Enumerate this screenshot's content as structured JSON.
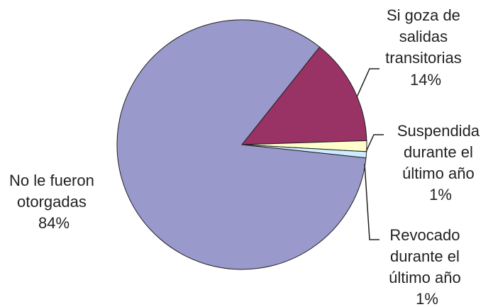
{
  "chart_data": {
    "type": "pie",
    "title": "",
    "slices": [
      {
        "label": [
          "Si goza de",
          "salidas",
          "transitorias"
        ],
        "percent_label": "14%",
        "value": 13.8,
        "color": "#993366"
      },
      {
        "label": [
          "Suspendida",
          "durante el",
          "último año"
        ],
        "percent_label": "1%",
        "value": 1.4,
        "color": "#ffffcc"
      },
      {
        "label": [
          "Revocado",
          "durante el",
          "último año"
        ],
        "percent_label": "1%",
        "value": 0.8,
        "color": "#ccecff"
      },
      {
        "label": [
          "No le fueron",
          "otorgadas"
        ],
        "percent_label": "84%",
        "value": 84.0,
        "color": "#9999cc"
      }
    ]
  }
}
